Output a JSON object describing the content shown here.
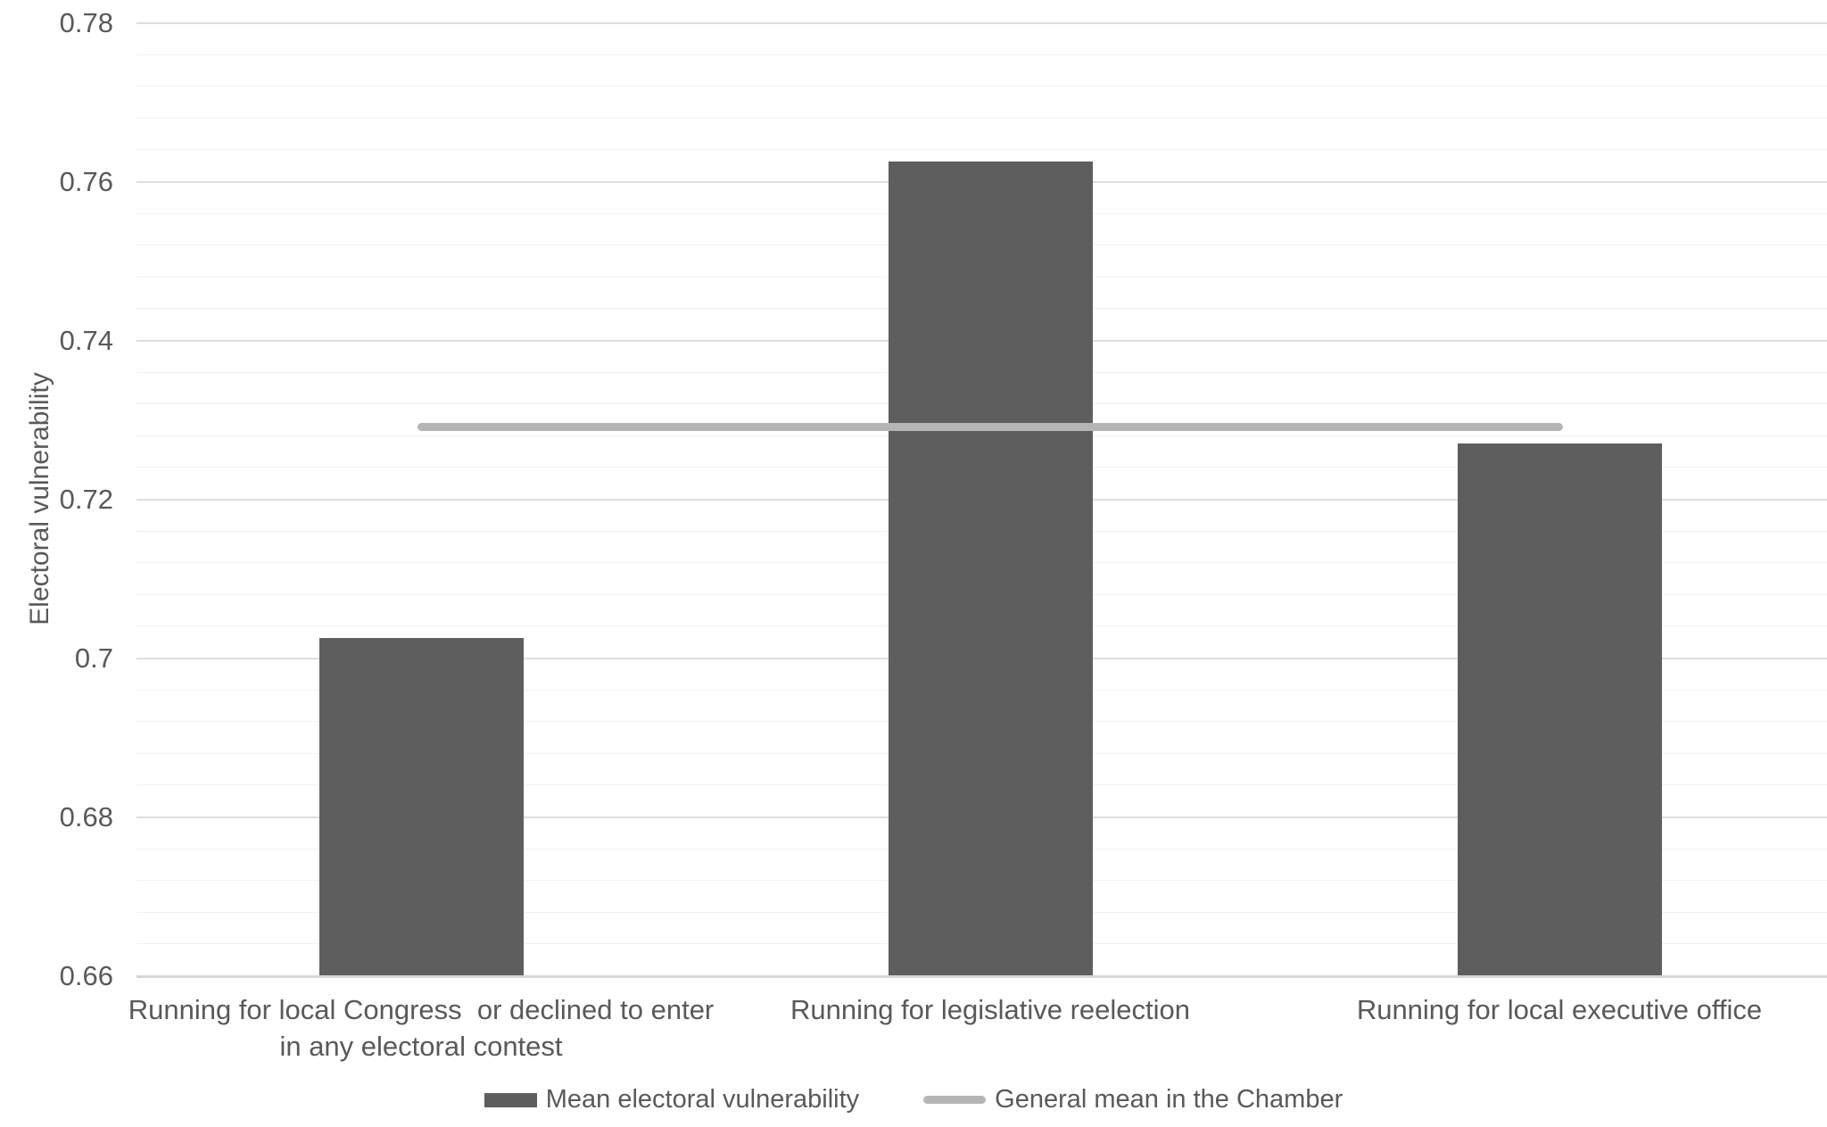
{
  "chart_data": {
    "type": "bar",
    "title": "",
    "xlabel": "",
    "ylabel": "Electoral vulnerability",
    "categories": [
      "Running for local Congress  or declined to enter\nin any electoral contest",
      "Running for legislative reelection",
      "Running for local executive office"
    ],
    "series": [
      {
        "name": "Mean electoral vulnerability",
        "type": "bar",
        "values": [
          0.7025,
          0.7625,
          0.727
        ],
        "color": "#5e5e5e"
      },
      {
        "name": "General mean in the Chamber",
        "type": "line",
        "values": [
          0.729,
          0.729,
          0.729
        ],
        "color": "#b5b5b5"
      }
    ],
    "ylim": [
      0.66,
      0.78
    ],
    "yticks": [
      {
        "value": 0.78,
        "label": "0.78"
      },
      {
        "value": 0.76,
        "label": "0.76"
      },
      {
        "value": 0.74,
        "label": "0.74"
      },
      {
        "value": 0.72,
        "label": "0.72"
      },
      {
        "value": 0.7,
        "label": "0.7"
      },
      {
        "value": 0.68,
        "label": "0.68"
      },
      {
        "value": 0.66,
        "label": "0.66"
      }
    ],
    "y_minor_step": 0.004,
    "grid": true,
    "legend_position": "bottom",
    "colors": {
      "bar_fill": "#5e5e5e",
      "mean_line": "#b5b5b5",
      "text": "#595959",
      "gridline_major": "#dedede",
      "gridline_minor": "#f1f1f1",
      "axis_line": "#d6d6d6"
    }
  }
}
